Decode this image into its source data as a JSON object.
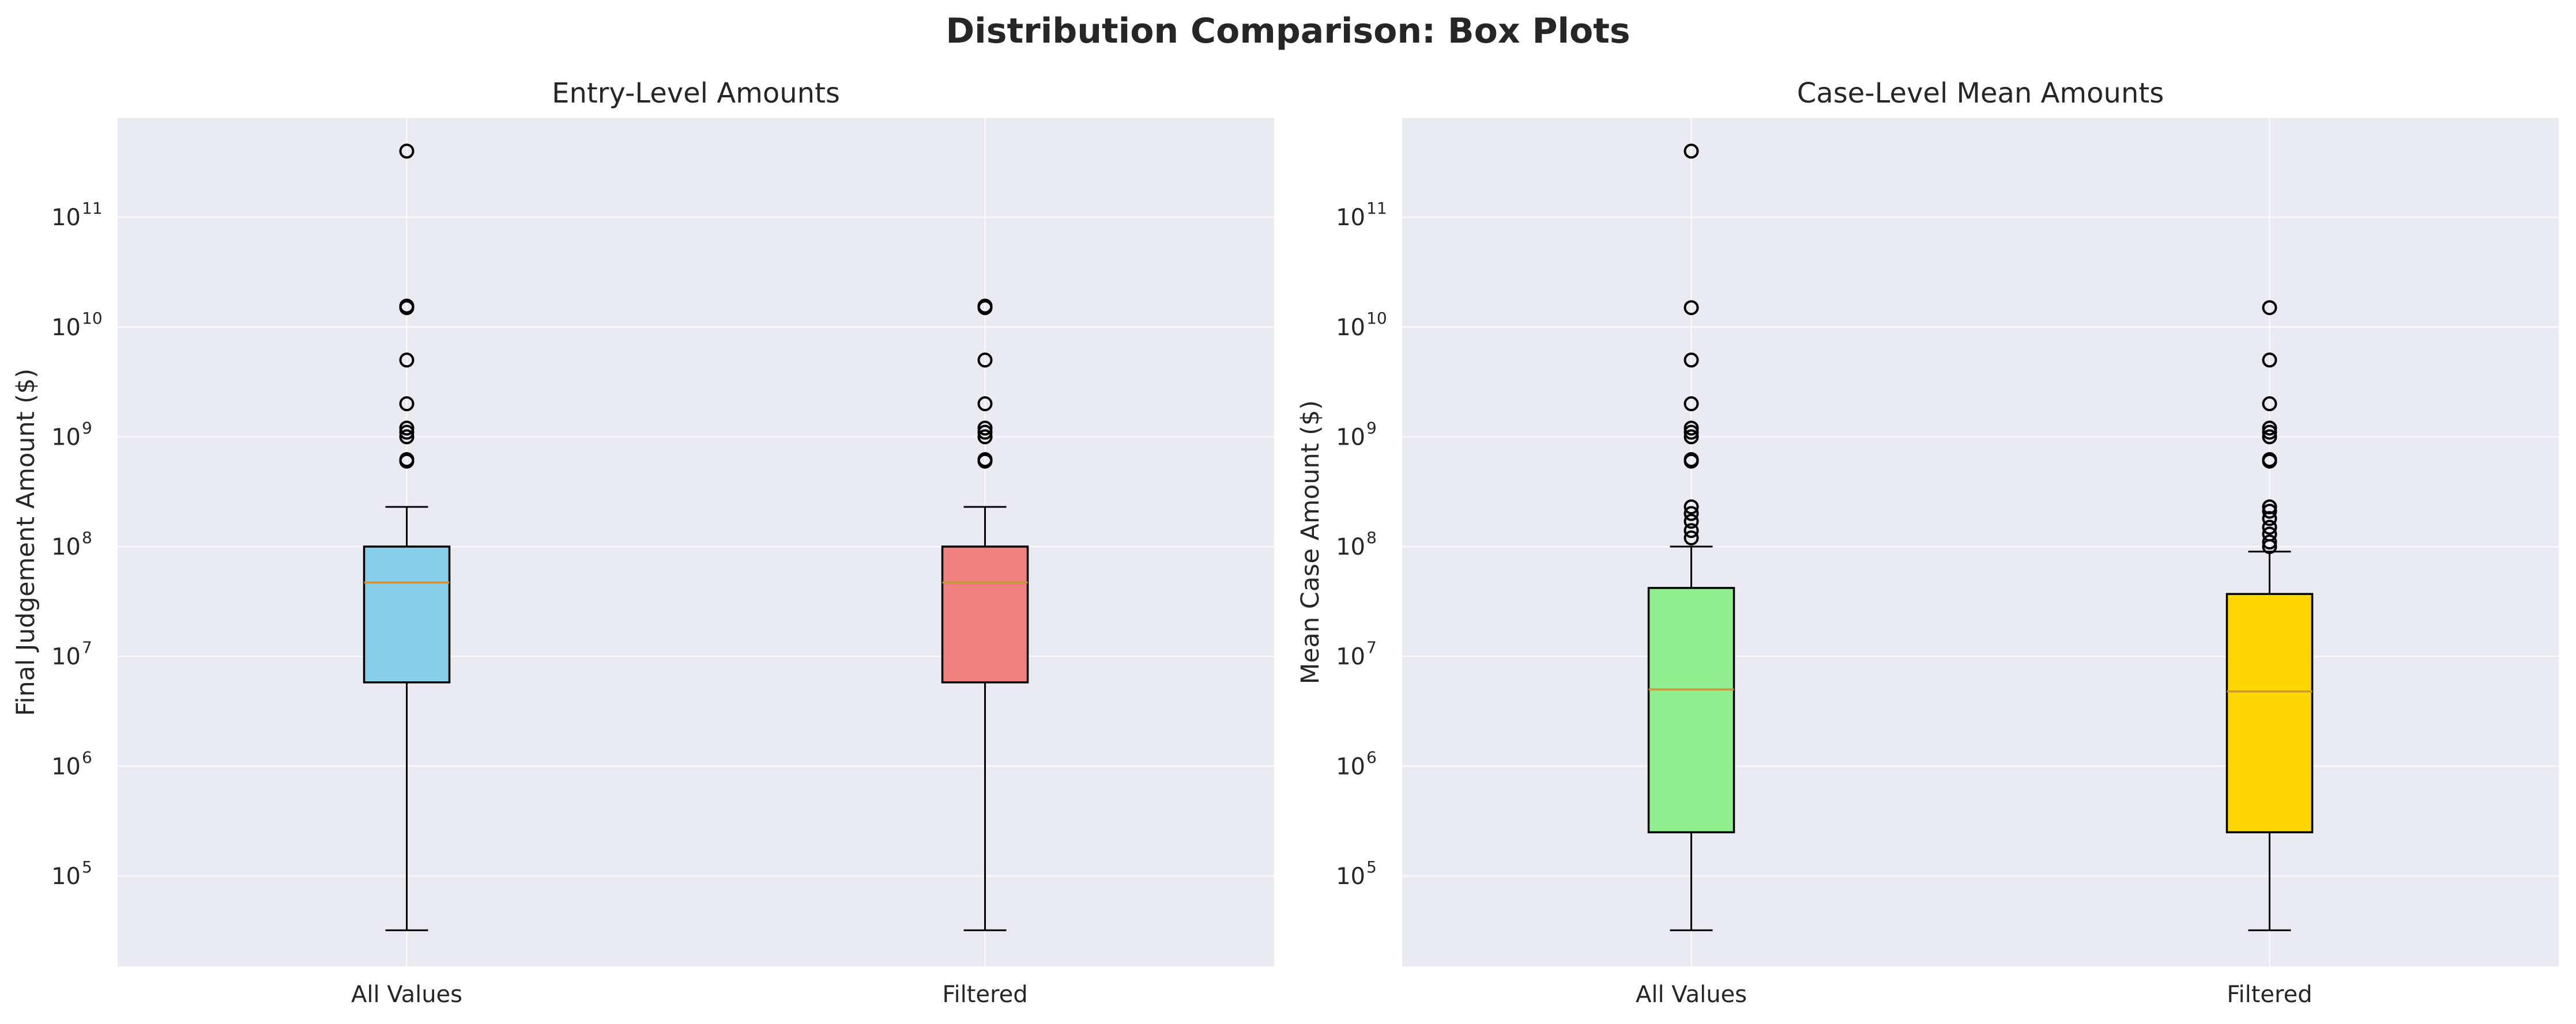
{
  "title": "Distribution Comparison: Box Plots",
  "chart_data": [
    {
      "type": "box",
      "title": "Entry-Level Amounts",
      "ylabel": "Final Judgement Amount ($)",
      "xlabel": "",
      "yscale": "log",
      "ylim": [
        15000,
        800000000000
      ],
      "yticks": [
        100000,
        1000000,
        10000000,
        100000000,
        1000000000,
        10000000000,
        100000000000
      ],
      "ytick_labels": [
        {
          "base": "10",
          "exp": "5"
        },
        {
          "base": "10",
          "exp": "6"
        },
        {
          "base": "10",
          "exp": "7"
        },
        {
          "base": "10",
          "exp": "8"
        },
        {
          "base": "10",
          "exp": "9"
        },
        {
          "base": "10",
          "exp": "10"
        },
        {
          "base": "10",
          "exp": "11"
        }
      ],
      "grid": true,
      "categories": [
        "All Values",
        "Filtered"
      ],
      "boxes": [
        {
          "label": "All Values",
          "color": "#87CEEB",
          "whisker_low": 32000,
          "q1": 5800000,
          "median": 47000000,
          "q3": 100000000,
          "whisker_high": 230000000,
          "outliers": [
            600000000,
            620000000,
            1000000000,
            1100000000,
            1200000000,
            2000000000,
            5000000000,
            15000000000,
            15500000000,
            400000000000
          ]
        },
        {
          "label": "Filtered",
          "color": "#F08080",
          "whisker_low": 32000,
          "q1": 5800000,
          "median": 47000000,
          "q3": 100000000,
          "whisker_high": 230000000,
          "outliers": [
            600000000,
            620000000,
            1000000000,
            1100000000,
            1200000000,
            2000000000,
            5000000000,
            15000000000,
            15500000000
          ]
        }
      ]
    },
    {
      "type": "box",
      "title": "Case-Level Mean Amounts",
      "ylabel": "Mean Case Amount ($)",
      "xlabel": "",
      "yscale": "log",
      "ylim": [
        15000,
        800000000000
      ],
      "yticks": [
        100000,
        1000000,
        10000000,
        100000000,
        1000000000,
        10000000000,
        100000000000
      ],
      "ytick_labels": [
        {
          "base": "10",
          "exp": "5"
        },
        {
          "base": "10",
          "exp": "6"
        },
        {
          "base": "10",
          "exp": "7"
        },
        {
          "base": "10",
          "exp": "8"
        },
        {
          "base": "10",
          "exp": "9"
        },
        {
          "base": "10",
          "exp": "10"
        },
        {
          "base": "10",
          "exp": "11"
        }
      ],
      "grid": true,
      "categories": [
        "All Values",
        "Filtered"
      ],
      "boxes": [
        {
          "label": "All Values",
          "color": "#90EE90",
          "whisker_low": 32000,
          "q1": 250000,
          "median": 5000000,
          "q3": 42000000,
          "whisker_high": 100000000,
          "outliers": [
            120000000,
            140000000,
            170000000,
            200000000,
            230000000,
            600000000,
            620000000,
            1000000000,
            1100000000,
            1200000000,
            2000000000,
            5000000000,
            15000000000,
            400000000000
          ]
        },
        {
          "label": "Filtered",
          "color": "#FFD700",
          "whisker_low": 32000,
          "q1": 250000,
          "median": 4800000,
          "q3": 37000000,
          "whisker_high": 90000000,
          "outliers": [
            100000000,
            110000000,
            130000000,
            150000000,
            180000000,
            210000000,
            230000000,
            600000000,
            620000000,
            1000000000,
            1100000000,
            1200000000,
            2000000000,
            5000000000,
            15000000000
          ]
        }
      ]
    }
  ],
  "style": {
    "panel_bg": "#EAEAF2",
    "grid_color": "#FFFFFF",
    "median_color": "#C8963C",
    "edge_color": "#000000"
  }
}
